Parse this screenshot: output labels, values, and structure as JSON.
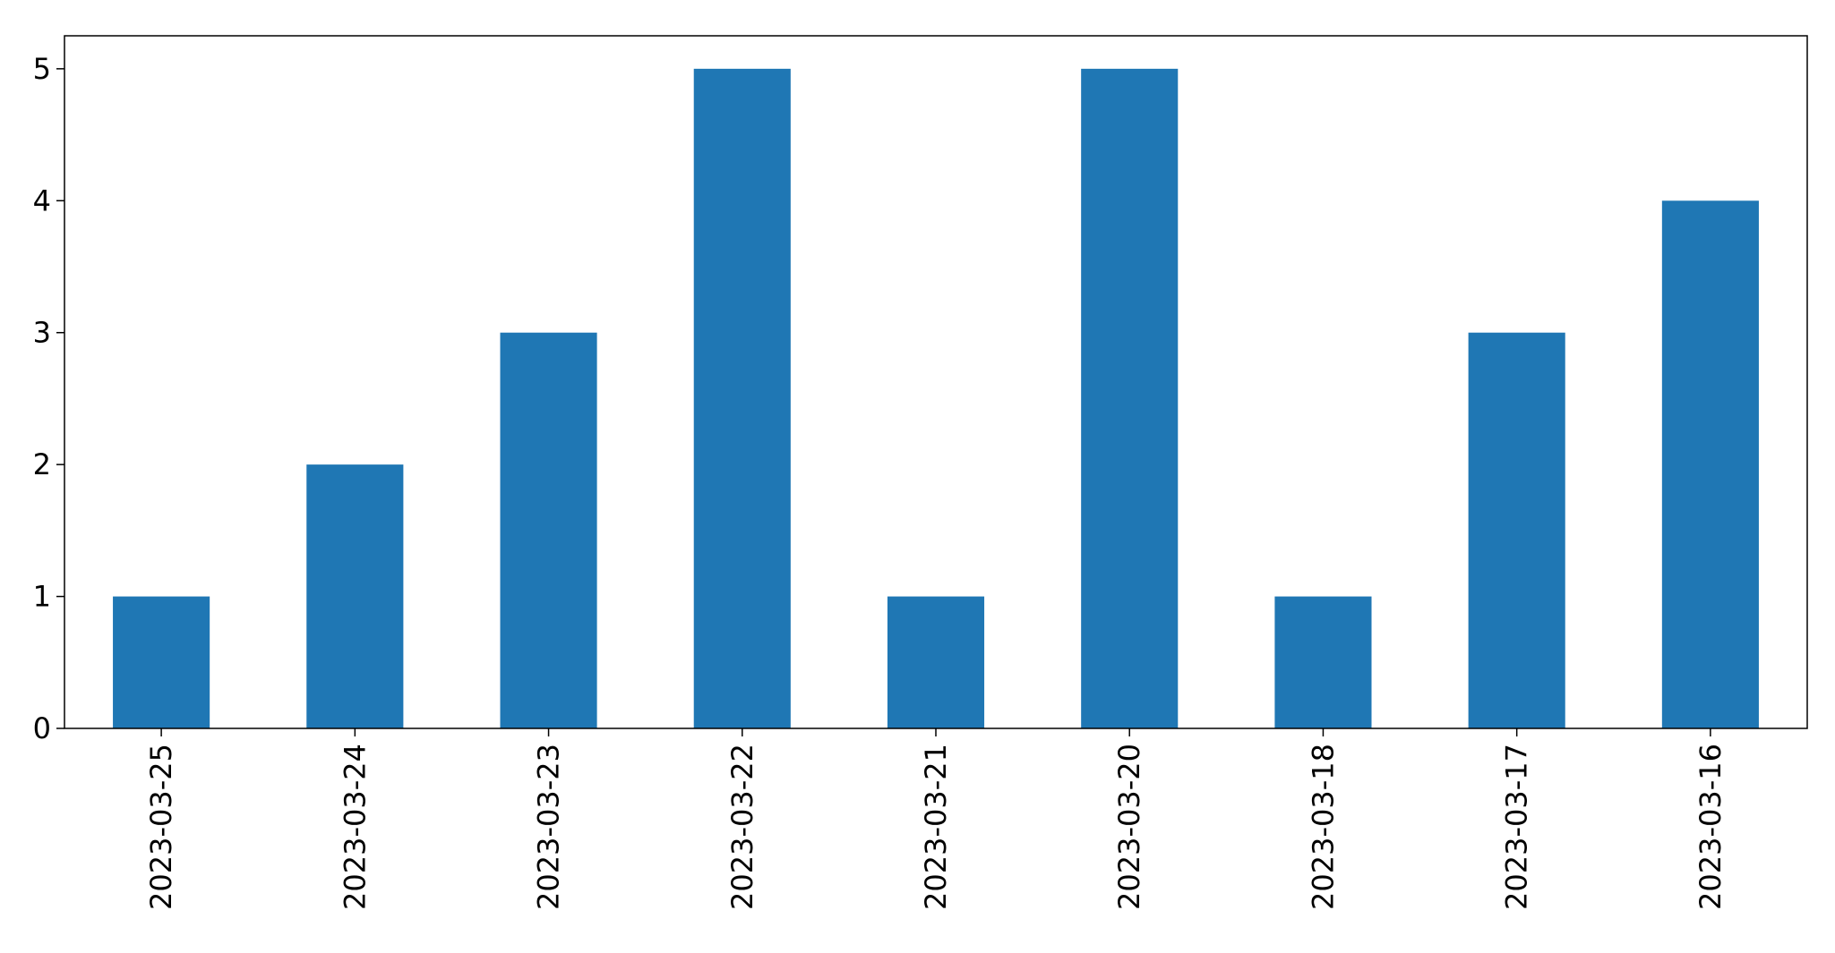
{
  "chart_data": {
    "type": "bar",
    "title": "",
    "xlabel": "",
    "ylabel": "",
    "categories": [
      "2023-03-25",
      "2023-03-24",
      "2023-03-23",
      "2023-03-22",
      "2023-03-21",
      "2023-03-20",
      "2023-03-18",
      "2023-03-17",
      "2023-03-16"
    ],
    "values": [
      1,
      2,
      3,
      5,
      1,
      5,
      1,
      3,
      4
    ],
    "ylim": [
      0,
      5.25
    ],
    "yticks": [
      0,
      1,
      2,
      3,
      4,
      5
    ],
    "bar_color": "#1f77b4",
    "grid": false,
    "legend": "none"
  }
}
